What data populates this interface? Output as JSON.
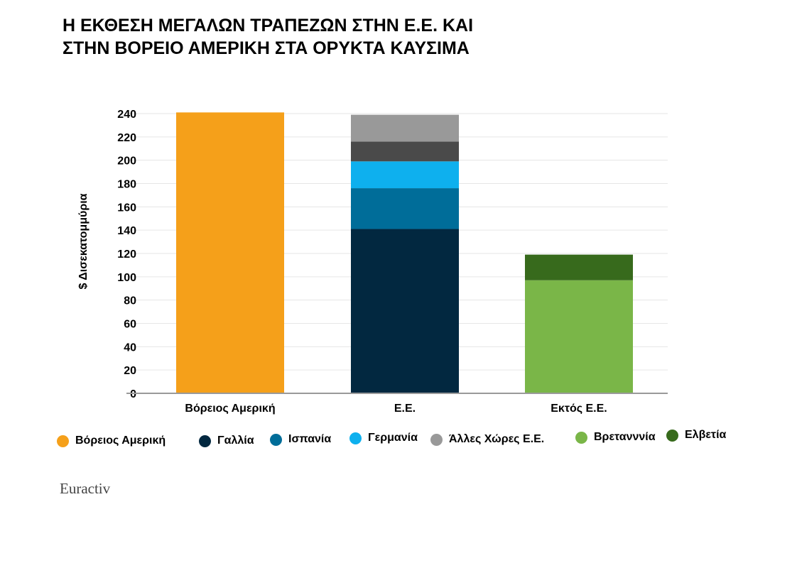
{
  "title_lines": [
    "Η ΕΚΘΕΣΗ ΜΕΓΑΛΩΝ ΤΡΑΠΕΖΩΝ ΣΤΗΝ Ε.Ε. ΚΑΙ",
    "ΣΤΗΝ ΒΟΡΕΙΟ ΑΜΕΡΙΚΗ ΣΤΑ ΟΡΥΚΤΑ ΚΑΥΣΙΜΑ"
  ],
  "source": "Euractiv",
  "chart_data": {
    "type": "bar",
    "stacked": true,
    "title": "Η ΕΚΘΕΣΗ ΜΕΓΑΛΩΝ ΤΡΑΠΕΖΩΝ ΣΤΗΝ Ε.Ε. ΚΑΙ ΣΤΗΝ ΒΟΡΕΙΟ ΑΜΕΡΙΚΗ ΣΤΑ ΟΡΥΚΤΑ ΚΑΥΣΙΜΑ",
    "xlabel": "",
    "ylabel": "$ Δισεκατομμύρια",
    "ylim": [
      0,
      240
    ],
    "yticks": [
      0,
      20,
      40,
      60,
      80,
      100,
      120,
      140,
      160,
      180,
      200,
      220,
      240
    ],
    "grid": true,
    "legend_position": "bottom",
    "categories": [
      "Βόρειος Αμερική",
      "Ε.Ε.",
      "Εκτός Ε.Ε."
    ],
    "series": [
      {
        "name": "Βόρειος Αμερική",
        "color": "#f5a01a",
        "values": [
          241,
          0,
          0
        ]
      },
      {
        "name": "Γαλλία",
        "color": "#022840",
        "values": [
          0,
          141,
          0
        ]
      },
      {
        "name": "Ισπανία",
        "color": "#006d99",
        "values": [
          0,
          35,
          0
        ]
      },
      {
        "name": "Γερμανία",
        "color": "#0eb0ee",
        "values": [
          0,
          23,
          0
        ]
      },
      {
        "name": "Άλλες Χώρες Ε.Ε.",
        "color": "#999999",
        "values": [
          0,
          0,
          0
        ]
      },
      {
        "name": "Βρετανννία",
        "color": "#7ab648",
        "values": [
          0,
          0,
          97
        ]
      },
      {
        "name": "Ελβετία",
        "color": "#376a1c",
        "values": [
          0,
          0,
          22
        ]
      }
    ],
    "extra_segments": [
      {
        "category": "Ε.Ε.",
        "color": "#4a4a4a",
        "value": 17
      },
      {
        "category": "Ε.Ε.",
        "color": "#999999",
        "value": 23
      }
    ]
  }
}
